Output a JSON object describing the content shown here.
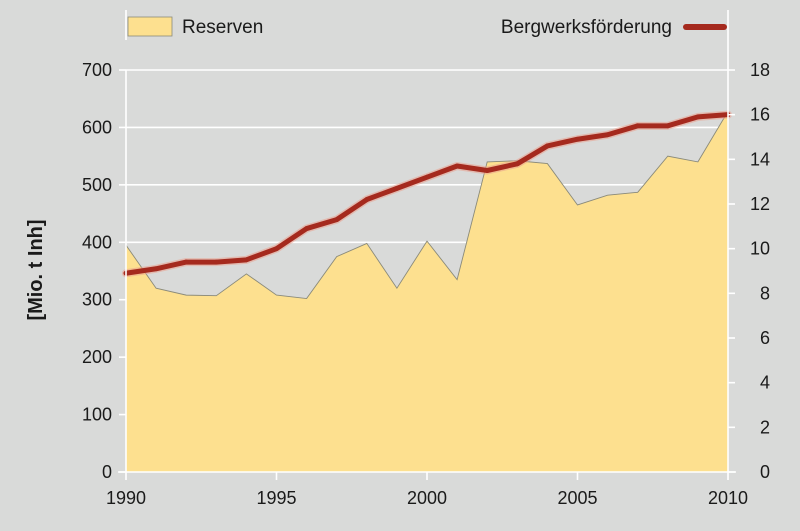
{
  "chart_data": {
    "type": "area+line",
    "title": "",
    "ylabel": "[Mio. t Inh]",
    "y2label": "",
    "xlim": [
      1990,
      2010
    ],
    "ylim": [
      0,
      700
    ],
    "y2lim": [
      0,
      18
    ],
    "x_ticks": [
      1990,
      1995,
      2000,
      2005,
      2010
    ],
    "y_ticks": [
      0,
      100,
      200,
      300,
      400,
      500,
      600,
      700
    ],
    "y2_ticks": [
      0,
      2,
      4,
      6,
      8,
      10,
      12,
      14,
      16,
      18
    ],
    "grid": "horizontal",
    "legend_placement": "top",
    "x": [
      1990,
      1991,
      1992,
      1993,
      1994,
      1995,
      1996,
      1997,
      1998,
      1999,
      2000,
      2001,
      2002,
      2003,
      2004,
      2005,
      2006,
      2007,
      2008,
      2009,
      2010
    ],
    "series": [
      {
        "name": "Reserven",
        "type": "area",
        "axis": "left",
        "color": "#fde08f",
        "values": [
          395,
          320,
          308,
          307,
          345,
          308,
          302,
          375,
          398,
          320,
          402,
          335,
          540,
          542,
          537,
          465,
          482,
          487,
          550,
          540,
          628
        ]
      },
      {
        "name": "Bergwerksförderung",
        "type": "line",
        "axis": "right",
        "color": "#a52a1e",
        "values": [
          8.9,
          9.1,
          9.4,
          9.4,
          9.5,
          10.0,
          10.9,
          11.3,
          12.2,
          12.7,
          13.2,
          13.7,
          13.5,
          13.8,
          14.6,
          14.9,
          15.1,
          15.5,
          15.5,
          15.9,
          16.0
        ]
      }
    ]
  }
}
